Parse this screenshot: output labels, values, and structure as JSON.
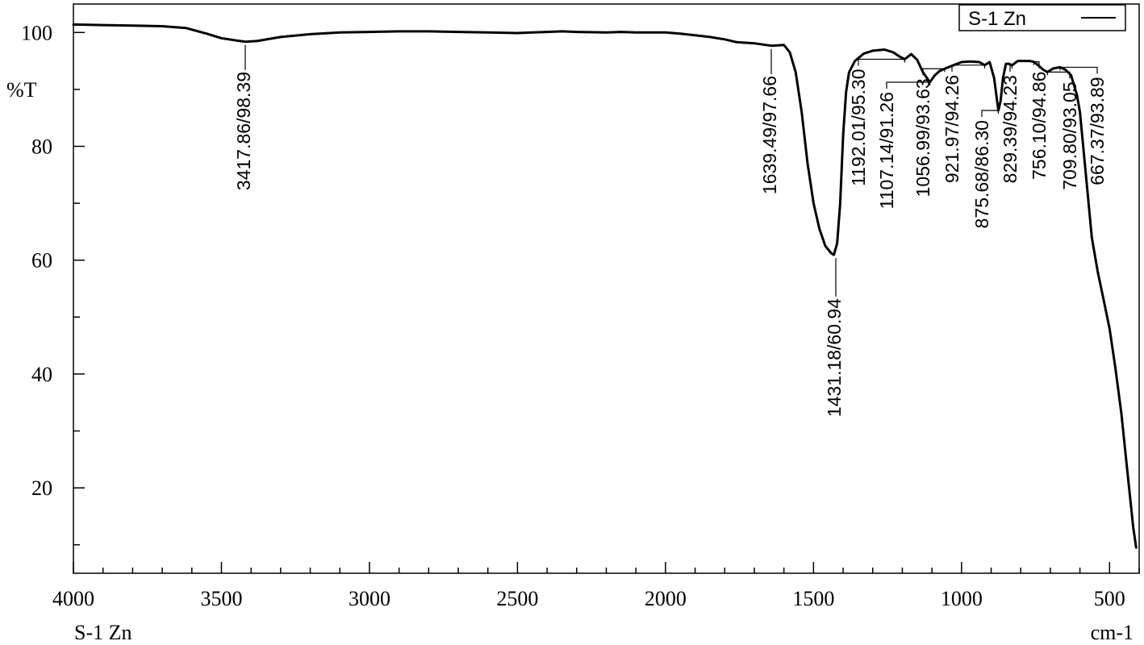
{
  "chart_data": {
    "type": "line",
    "title": "",
    "xlabel": "cm-1",
    "ylabel": "%T",
    "bottom_left_label": "S-1 Zn",
    "xlim": [
      4000,
      400
    ],
    "ylim": [
      5,
      105
    ],
    "x_ticks": [
      4000,
      3500,
      3000,
      2500,
      2000,
      1500,
      1000,
      500
    ],
    "y_ticks": [
      20,
      40,
      60,
      80,
      100
    ],
    "grid": false,
    "legend": {
      "placement": "top-right",
      "entries": [
        "S-1 Zn"
      ]
    },
    "series": [
      {
        "name": "S-1 Zn",
        "color": "#000000",
        "x": [
          4000,
          3900,
          3800,
          3700,
          3620,
          3550,
          3500,
          3450,
          3417.86,
          3380,
          3300,
          3200,
          3100,
          3000,
          2900,
          2800,
          2700,
          2600,
          2500,
          2450,
          2400,
          2350,
          2300,
          2200,
          2150,
          2100,
          2000,
          1950,
          1900,
          1850,
          1800,
          1760,
          1700,
          1660,
          1639.49,
          1600,
          1580,
          1560,
          1540,
          1520,
          1500,
          1480,
          1460,
          1440,
          1431.18,
          1420,
          1410,
          1400,
          1390,
          1380,
          1360,
          1330,
          1300,
          1260,
          1230,
          1210,
          1192.01,
          1170,
          1150,
          1130,
          1107.14,
          1090,
          1075,
          1056.99,
          1040,
          1020,
          1000,
          970,
          940,
          921.97,
          905,
          890,
          880,
          875.68,
          868,
          860,
          850,
          840,
          829.39,
          810,
          790,
          770,
          756.1,
          740,
          725,
          709.8,
          690,
          667.37,
          650,
          630,
          610,
          600,
          580,
          560,
          540,
          520,
          500,
          480,
          460,
          440,
          420,
          410
        ],
        "y": [
          101.4,
          101.3,
          101.2,
          101.1,
          100.8,
          99.8,
          99.0,
          98.6,
          98.39,
          98.5,
          99.2,
          99.7,
          100.0,
          100.1,
          100.2,
          100.2,
          100.1,
          100.0,
          99.9,
          100.0,
          100.1,
          100.2,
          100.1,
          100.0,
          100.1,
          100.0,
          100.0,
          99.8,
          99.5,
          99.2,
          98.8,
          98.3,
          98.1,
          97.8,
          97.66,
          97.8,
          96.5,
          93.0,
          86.0,
          77.0,
          70.0,
          65.5,
          62.5,
          61.2,
          60.94,
          63.0,
          70.0,
          82.0,
          89.5,
          93.0,
          95.0,
          96.3,
          96.8,
          97.0,
          96.5,
          95.8,
          95.3,
          96.2,
          95.2,
          93.0,
          91.26,
          92.5,
          93.2,
          93.63,
          94.0,
          94.4,
          94.8,
          94.9,
          94.8,
          94.26,
          94.8,
          92.0,
          88.0,
          86.3,
          88.0,
          92.0,
          94.5,
          94.5,
          94.23,
          95.0,
          95.0,
          95.0,
          94.86,
          94.2,
          93.5,
          93.05,
          93.7,
          93.89,
          93.5,
          92.5,
          89.0,
          86.0,
          75.0,
          64.0,
          58.0,
          53.0,
          48.0,
          41.0,
          33.0,
          23.0,
          13.0,
          9.5
        ]
      }
    ],
    "annotations": [
      {
        "x": 3417.86,
        "y": 98.39,
        "text": "3417.86/98.39"
      },
      {
        "x": 1639.49,
        "y": 97.66,
        "text": "1639.49/97.66"
      },
      {
        "x": 1431.18,
        "y": 60.94,
        "text": "1431.18/60.94"
      },
      {
        "x": 1192.01,
        "y": 95.3,
        "text": "1192.01/95.30"
      },
      {
        "x": 1107.14,
        "y": 91.26,
        "text": "1107.14/91.26"
      },
      {
        "x": 1056.99,
        "y": 93.63,
        "text": "1056.99/93.63"
      },
      {
        "x": 921.97,
        "y": 94.26,
        "text": "921.97/94.26"
      },
      {
        "x": 875.68,
        "y": 86.3,
        "text": "875.68/86.30"
      },
      {
        "x": 829.39,
        "y": 94.23,
        "text": "829.39/94.23"
      },
      {
        "x": 756.1,
        "y": 94.86,
        "text": "756.10/94.86"
      },
      {
        "x": 709.8,
        "y": 93.05,
        "text": "709.80/93.05"
      },
      {
        "x": 667.37,
        "y": 93.89,
        "text": "667.37/93.89"
      }
    ]
  }
}
